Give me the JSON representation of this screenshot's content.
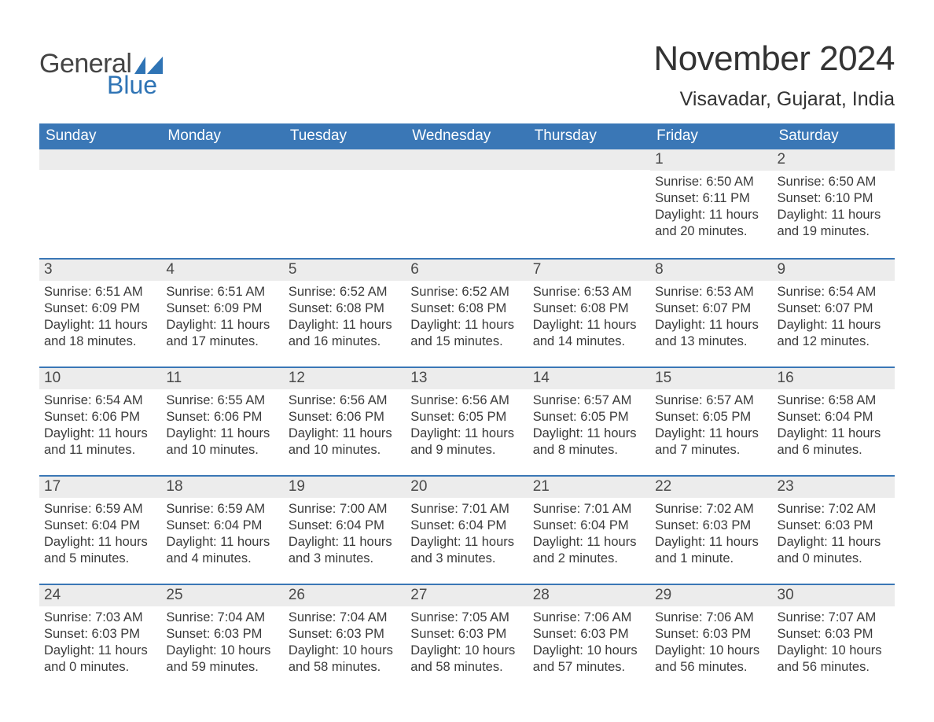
{
  "brand": {
    "word1": "General",
    "word2": "Blue",
    "flag_color": "#2f74b5"
  },
  "title": "November 2024",
  "location": "Visavadar, Gujarat, India",
  "colors": {
    "header_bg": "#3a77b6",
    "header_text": "#ffffff",
    "daynum_bg": "#ececec",
    "row_divider": "#3a77b6",
    "text": "#333333",
    "background": "#ffffff"
  },
  "weekdays": [
    "Sunday",
    "Monday",
    "Tuesday",
    "Wednesday",
    "Thursday",
    "Friday",
    "Saturday"
  ],
  "weeks": [
    [
      null,
      null,
      null,
      null,
      null,
      {
        "d": "1",
        "sr": "Sunrise: 6:50 AM",
        "ss": "Sunset: 6:11 PM",
        "dl": "Daylight: 11 hours and 20 minutes."
      },
      {
        "d": "2",
        "sr": "Sunrise: 6:50 AM",
        "ss": "Sunset: 6:10 PM",
        "dl": "Daylight: 11 hours and 19 minutes."
      }
    ],
    [
      {
        "d": "3",
        "sr": "Sunrise: 6:51 AM",
        "ss": "Sunset: 6:09 PM",
        "dl": "Daylight: 11 hours and 18 minutes."
      },
      {
        "d": "4",
        "sr": "Sunrise: 6:51 AM",
        "ss": "Sunset: 6:09 PM",
        "dl": "Daylight: 11 hours and 17 minutes."
      },
      {
        "d": "5",
        "sr": "Sunrise: 6:52 AM",
        "ss": "Sunset: 6:08 PM",
        "dl": "Daylight: 11 hours and 16 minutes."
      },
      {
        "d": "6",
        "sr": "Sunrise: 6:52 AM",
        "ss": "Sunset: 6:08 PM",
        "dl": "Daylight: 11 hours and 15 minutes."
      },
      {
        "d": "7",
        "sr": "Sunrise: 6:53 AM",
        "ss": "Sunset: 6:08 PM",
        "dl": "Daylight: 11 hours and 14 minutes."
      },
      {
        "d": "8",
        "sr": "Sunrise: 6:53 AM",
        "ss": "Sunset: 6:07 PM",
        "dl": "Daylight: 11 hours and 13 minutes."
      },
      {
        "d": "9",
        "sr": "Sunrise: 6:54 AM",
        "ss": "Sunset: 6:07 PM",
        "dl": "Daylight: 11 hours and 12 minutes."
      }
    ],
    [
      {
        "d": "10",
        "sr": "Sunrise: 6:54 AM",
        "ss": "Sunset: 6:06 PM",
        "dl": "Daylight: 11 hours and 11 minutes."
      },
      {
        "d": "11",
        "sr": "Sunrise: 6:55 AM",
        "ss": "Sunset: 6:06 PM",
        "dl": "Daylight: 11 hours and 10 minutes."
      },
      {
        "d": "12",
        "sr": "Sunrise: 6:56 AM",
        "ss": "Sunset: 6:06 PM",
        "dl": "Daylight: 11 hours and 10 minutes."
      },
      {
        "d": "13",
        "sr": "Sunrise: 6:56 AM",
        "ss": "Sunset: 6:05 PM",
        "dl": "Daylight: 11 hours and 9 minutes."
      },
      {
        "d": "14",
        "sr": "Sunrise: 6:57 AM",
        "ss": "Sunset: 6:05 PM",
        "dl": "Daylight: 11 hours and 8 minutes."
      },
      {
        "d": "15",
        "sr": "Sunrise: 6:57 AM",
        "ss": "Sunset: 6:05 PM",
        "dl": "Daylight: 11 hours and 7 minutes."
      },
      {
        "d": "16",
        "sr": "Sunrise: 6:58 AM",
        "ss": "Sunset: 6:04 PM",
        "dl": "Daylight: 11 hours and 6 minutes."
      }
    ],
    [
      {
        "d": "17",
        "sr": "Sunrise: 6:59 AM",
        "ss": "Sunset: 6:04 PM",
        "dl": "Daylight: 11 hours and 5 minutes."
      },
      {
        "d": "18",
        "sr": "Sunrise: 6:59 AM",
        "ss": "Sunset: 6:04 PM",
        "dl": "Daylight: 11 hours and 4 minutes."
      },
      {
        "d": "19",
        "sr": "Sunrise: 7:00 AM",
        "ss": "Sunset: 6:04 PM",
        "dl": "Daylight: 11 hours and 3 minutes."
      },
      {
        "d": "20",
        "sr": "Sunrise: 7:01 AM",
        "ss": "Sunset: 6:04 PM",
        "dl": "Daylight: 11 hours and 3 minutes."
      },
      {
        "d": "21",
        "sr": "Sunrise: 7:01 AM",
        "ss": "Sunset: 6:04 PM",
        "dl": "Daylight: 11 hours and 2 minutes."
      },
      {
        "d": "22",
        "sr": "Sunrise: 7:02 AM",
        "ss": "Sunset: 6:03 PM",
        "dl": "Daylight: 11 hours and 1 minute."
      },
      {
        "d": "23",
        "sr": "Sunrise: 7:02 AM",
        "ss": "Sunset: 6:03 PM",
        "dl": "Daylight: 11 hours and 0 minutes."
      }
    ],
    [
      {
        "d": "24",
        "sr": "Sunrise: 7:03 AM",
        "ss": "Sunset: 6:03 PM",
        "dl": "Daylight: 11 hours and 0 minutes."
      },
      {
        "d": "25",
        "sr": "Sunrise: 7:04 AM",
        "ss": "Sunset: 6:03 PM",
        "dl": "Daylight: 10 hours and 59 minutes."
      },
      {
        "d": "26",
        "sr": "Sunrise: 7:04 AM",
        "ss": "Sunset: 6:03 PM",
        "dl": "Daylight: 10 hours and 58 minutes."
      },
      {
        "d": "27",
        "sr": "Sunrise: 7:05 AM",
        "ss": "Sunset: 6:03 PM",
        "dl": "Daylight: 10 hours and 58 minutes."
      },
      {
        "d": "28",
        "sr": "Sunrise: 7:06 AM",
        "ss": "Sunset: 6:03 PM",
        "dl": "Daylight: 10 hours and 57 minutes."
      },
      {
        "d": "29",
        "sr": "Sunrise: 7:06 AM",
        "ss": "Sunset: 6:03 PM",
        "dl": "Daylight: 10 hours and 56 minutes."
      },
      {
        "d": "30",
        "sr": "Sunrise: 7:07 AM",
        "ss": "Sunset: 6:03 PM",
        "dl": "Daylight: 10 hours and 56 minutes."
      }
    ]
  ]
}
